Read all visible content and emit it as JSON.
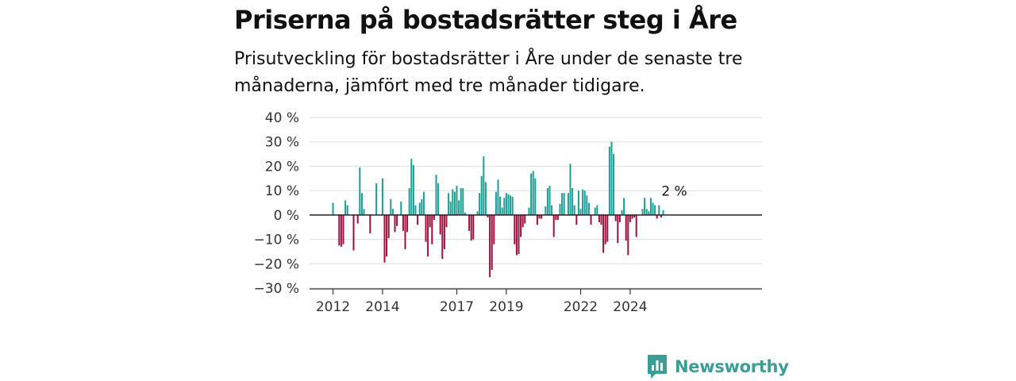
{
  "title": "Priserna på bostadsrätter steg i Åre",
  "subtitle": "Prisutveckling för bostadsrätter i Åre under de senaste tre månaderna, jämfört med tre månader tidigare.",
  "brand": {
    "name": "Newsworthy",
    "icon": "newsworthy-logo-icon"
  },
  "colors": {
    "positive": "#1b9e93",
    "negative": "#9e0f3c",
    "grid": "#dddddd",
    "axis": "#333333"
  },
  "chart_data": {
    "type": "bar",
    "x_start": "2012-01",
    "frequency": "monthly",
    "ylim": [
      -30,
      40
    ],
    "ytick_labels": [
      "40 %",
      "30 %",
      "20 %",
      "10 %",
      "0 %",
      "−10 %",
      "−20 %",
      "−30 %"
    ],
    "xtick_labels": [
      "2012",
      "2014",
      "2017",
      "2019",
      "2022",
      "2024"
    ],
    "annotation": "2 %",
    "grid": true,
    "legend": "none",
    "values": [
      5,
      null,
      null,
      -12.5,
      -13,
      -12,
      6,
      4,
      null,
      null,
      -14.5,
      null,
      -3.5,
      19.5,
      9,
      2.5,
      null,
      null,
      -7.5,
      null,
      null,
      13,
      null,
      null,
      15,
      -19.5,
      -17,
      -9.5,
      6.5,
      2.5,
      -7,
      -4.5,
      null,
      5.5,
      -6.5,
      -14,
      -7,
      11,
      23,
      20.5,
      4,
      -4,
      5,
      6.5,
      9.5,
      -11,
      -17,
      -5,
      -12,
      -2,
      16.5,
      13,
      -8,
      -18,
      -14,
      -5,
      9,
      5.5,
      10.5,
      9.5,
      12,
      6,
      11,
      11,
      1,
      null,
      -6.5,
      -10.5,
      -10,
      null,
      1.5,
      9,
      16,
      24,
      13.5,
      -1,
      -25.5,
      -22.5,
      -12,
      9.5,
      14.5,
      7.5,
      3,
      7,
      9,
      8.5,
      8,
      7.5,
      -12,
      -16.5,
      -16,
      -9,
      -5,
      -3.5,
      null,
      3,
      17,
      18,
      15,
      -4,
      -1.5,
      -1.5,
      null,
      3.5,
      11,
      12,
      4,
      -9,
      -2,
      -2,
      4.5,
      9,
      9,
      null,
      9,
      21,
      11,
      4,
      -4,
      10,
      2.5,
      10.5,
      10,
      8,
      5,
      -4,
      null,
      3,
      4,
      -3,
      -4,
      -15.5,
      -12,
      -11,
      28,
      30,
      25,
      -2.5,
      -11.5,
      -3,
      2,
      7,
      -10.5,
      -16.5,
      -3,
      -1.5,
      -1,
      -9,
      null,
      null,
      2.5,
      7,
      2.5,
      1.5,
      7,
      5,
      4,
      -1.5,
      4,
      -1,
      2
    ]
  }
}
